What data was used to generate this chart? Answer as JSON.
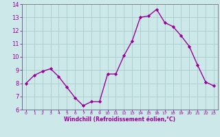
{
  "x": [
    0,
    1,
    2,
    3,
    4,
    5,
    6,
    7,
    8,
    9,
    10,
    11,
    12,
    13,
    14,
    15,
    16,
    17,
    18,
    19,
    20,
    21,
    22,
    23
  ],
  "y": [
    8.0,
    8.6,
    8.9,
    9.1,
    8.5,
    7.7,
    6.9,
    6.3,
    6.6,
    6.6,
    8.7,
    8.7,
    10.1,
    11.2,
    13.0,
    13.1,
    13.6,
    12.6,
    12.3,
    11.6,
    10.8,
    9.4,
    8.1,
    7.8
  ],
  "line_color": "#990099",
  "marker": "D",
  "marker_size": 2.2,
  "bg_color": "#cde8e8",
  "grid_color": "#aacccc",
  "xlabel": "Windchill (Refroidissement éolien,°C)",
  "xlabel_color": "#990099",
  "tick_color": "#990099",
  "ylim": [
    6,
    14
  ],
  "xlim": [
    -0.5,
    23.5
  ],
  "yticks": [
    6,
    7,
    8,
    9,
    10,
    11,
    12,
    13,
    14
  ],
  "xticks": [
    0,
    1,
    2,
    3,
    4,
    5,
    6,
    7,
    8,
    9,
    10,
    11,
    12,
    13,
    14,
    15,
    16,
    17,
    18,
    19,
    20,
    21,
    22,
    23
  ],
  "linewidth": 1.0,
  "spine_color": "#777777"
}
